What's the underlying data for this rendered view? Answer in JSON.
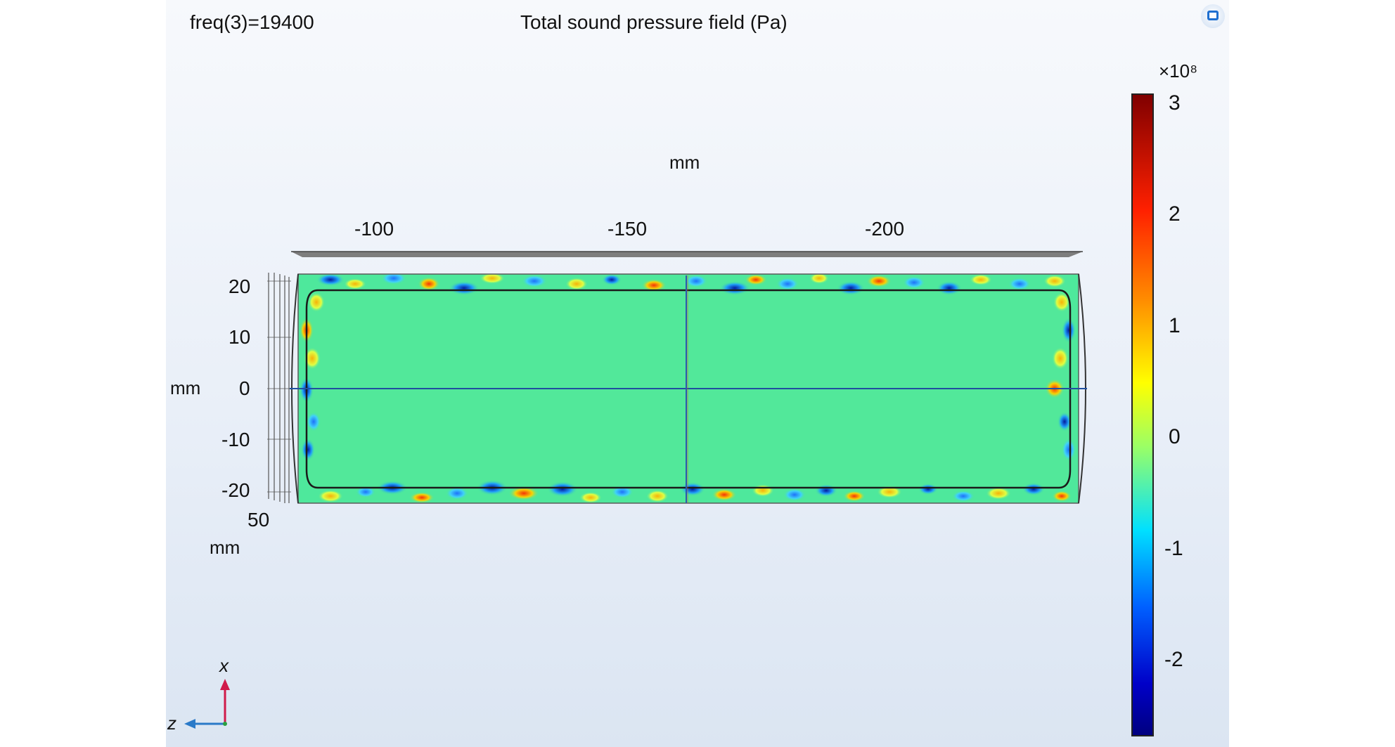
{
  "header": {
    "freq_label": "freq(3)=19400",
    "title": "Total sound pressure field (Pa)"
  },
  "axes": {
    "top_unit": "mm",
    "top_ticks": [
      "-100",
      "-150",
      "-200"
    ],
    "left_unit": "mm",
    "left_ticks": [
      "20",
      "10",
      "0",
      "-10",
      "-20"
    ],
    "depth_tick": "50",
    "depth_unit": "mm"
  },
  "colorbar": {
    "exponent_label": "×10⁸",
    "ticks": [
      "3",
      "2",
      "1",
      "0",
      "-1",
      "-2"
    ],
    "range": [
      -2.6,
      3.1
    ]
  },
  "triad": {
    "x_label": "x",
    "z_label": "z"
  },
  "colors": {
    "field_base": "#4ee89c",
    "edge_line": "#1a1a1a"
  }
}
